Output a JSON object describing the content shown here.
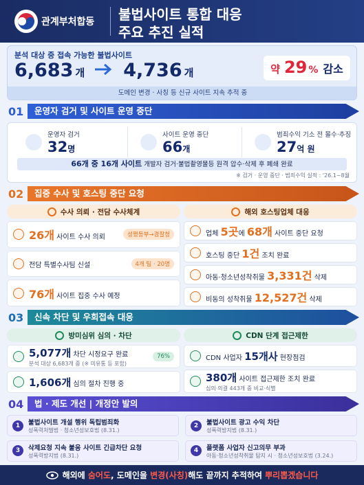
{
  "header": {
    "org": "관계부처합동",
    "title_line1": "불법사이트 통합 대응",
    "title_line2": "주요 추진 실적"
  },
  "summary": {
    "label": "분석 대상 중 접속 가능한 불법사이트",
    "before_value": "6,683",
    "before_unit": "개",
    "after_value": "4,736",
    "after_unit": "개",
    "change_prefix": "약",
    "change_value": "29",
    "change_unit": "%",
    "change_word": "감소",
    "note": "도메인 변경 · 사칭 등 신규 사이트 지속 추적 중"
  },
  "section1": {
    "number": "01",
    "title": "운영자 검거 및 사이트 운영 중단",
    "stats": [
      {
        "label": "운영자 검거",
        "value": "32",
        "unit": "명"
      },
      {
        "label": "사이트 운영 중단",
        "value": "66",
        "unit": "개"
      },
      {
        "label": "범죄수익 기소 전 몰수·추징",
        "value": "27",
        "unit": "억 원"
      }
    ],
    "highlight": {
      "emph": "66개 중 16개 사이트",
      "rest": "개발자 검거·불법촬영물등 원격 압수·삭제 후 폐쇄 완료"
    },
    "footnote": "※ 검거 · 운영 중단 · 범죄수익 실적 : '26.1~8월"
  },
  "section2": {
    "number": "02",
    "title": "집중 수사 및 호스팅 중단 요청",
    "left": {
      "heading": "수사 의뢰 · 전담 수사체계",
      "items": [
        {
          "parts": [
            {
              "text": "26개",
              "style": "em"
            },
            {
              "text": " 사이트 수사 의뢰"
            }
          ],
          "tag": "성평등부→경찰청"
        },
        {
          "parts": [
            {
              "text": "전담 특별수사팀 신설"
            }
          ],
          "tag": "4개 팀 · 20명"
        },
        {
          "parts": [
            {
              "text": "76개",
              "style": "em"
            },
            {
              "text": " 사이트 집중 수사 예정"
            }
          ]
        }
      ]
    },
    "right": {
      "heading": "해외 호스팅업체 대응",
      "items": [
        {
          "parts": [
            {
              "text": "업체 "
            },
            {
              "text": "5곳",
              "style": "em"
            },
            {
              "text": "에 "
            },
            {
              "text": "68개",
              "style": "em"
            },
            {
              "text": " 사이트 중단 요청"
            }
          ]
        },
        {
          "parts": [
            {
              "text": "호스팅 중단 "
            },
            {
              "text": "1건",
              "style": "em"
            },
            {
              "text": " 조치 완료"
            }
          ]
        },
        {
          "parts": [
            {
              "text": "아동·청소년성착취물 "
            },
            {
              "text": "3,331건",
              "style": "em"
            },
            {
              "text": " 삭제"
            }
          ]
        },
        {
          "parts": [
            {
              "text": "비동의 성착취물 "
            },
            {
              "text": "12,527건",
              "style": "em"
            },
            {
              "text": " 삭제"
            }
          ]
        }
      ]
    }
  },
  "section3": {
    "number": "03",
    "title": "신속 차단 및 우회접속 대응",
    "left": {
      "heading": "방미심위 심의 · 차단",
      "items": [
        {
          "parts": [
            {
              "text": "5,077개",
              "style": "em"
            },
            {
              "text": " 차단 시정요구 완료"
            }
          ],
          "sub": "분석 대상 6,683개 중 (※ 미유통 등 포함)",
          "tag": "76%"
        },
        {
          "parts": [
            {
              "text": "1,606개",
              "style": "em"
            },
            {
              "text": " 심의 절차 진행 중"
            }
          ]
        }
      ]
    },
    "right": {
      "heading": "CDN 단계 접근제한",
      "items": [
        {
          "parts": [
            {
              "text": "CDN 사업자 "
            },
            {
              "text": "15개사",
              "style": "em"
            },
            {
              "text": " 현장점검"
            }
          ]
        },
        {
          "parts": [
            {
              "text": "380개",
              "style": "em"
            },
            {
              "text": " 사이트 접근제한 조치 완료"
            }
          ],
          "sub": "심의·의결 443개 중 비교·식별"
        }
      ]
    }
  },
  "section4": {
    "number": "04",
    "title": "법 · 제도 개선  |  개정안 발의",
    "items": [
      {
        "no": "1",
        "title": "불법사이트 개설 행위 독립범죄화",
        "sub": "성폭력처벌법 · 청소년성보호법 (8.31.)"
      },
      {
        "no": "2",
        "title": "불법사이트 광고 수익 차단",
        "sub": "성폭력방지법 (8.31.)"
      },
      {
        "no": "3",
        "title": "삭제요청 지속 불응 사이트 긴급차단 요청",
        "sub": "성폭력방지법 (8.31.)"
      },
      {
        "no": "4",
        "title": "플랫폼 사업자 신고의무 부과",
        "sub": "아동·청소년성착취물 탐지 시 · 청소년성보호법 (3.24.)"
      }
    ]
  },
  "footer": {
    "parts": [
      {
        "text": "해외에 "
      },
      {
        "text": "숨어도",
        "style": "em"
      },
      {
        "text": ", 도메인을 "
      },
      {
        "text": "변경(사칭)",
        "style": "em"
      },
      {
        "text": "해도 끝까지 추적하여 "
      },
      {
        "text": "뿌리뽑겠습니다",
        "style": "em"
      }
    ]
  }
}
